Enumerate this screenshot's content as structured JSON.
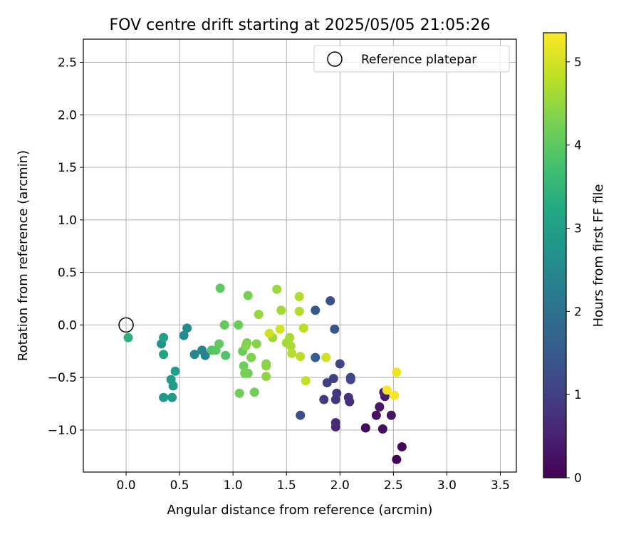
{
  "chart_data": {
    "type": "scatter",
    "title": "FOV centre drift starting at 2025/05/05 21:05:26",
    "xlabel": "Angular distance from reference (arcmin)",
    "ylabel": "Rotation from reference (arcmin)",
    "xlim": [
      -0.4,
      3.65
    ],
    "ylim": [
      -1.4,
      2.72
    ],
    "xticks": [
      "0.0",
      "0.5",
      "1.0",
      "1.5",
      "2.0",
      "2.5",
      "3.0",
      "3.5"
    ],
    "xtick_values": [
      0,
      0.5,
      1,
      1.5,
      2,
      2.5,
      3,
      3.5
    ],
    "yticks": [
      "−1.0",
      "−0.5",
      "0.0",
      "0.5",
      "1.0",
      "1.5",
      "2.0",
      "2.5"
    ],
    "ytick_values": [
      -1,
      -0.5,
      0,
      0.5,
      1,
      1.5,
      2,
      2.5
    ],
    "grid": true,
    "legend": {
      "position": "top-right",
      "entries": [
        {
          "label": "Reference platepar",
          "marker": "open-circle"
        }
      ]
    },
    "reference_point": {
      "x": 0.0,
      "y": 0.0
    },
    "colorbar": {
      "label": "Hours from first FF file",
      "colormap": "viridis",
      "range": [
        0,
        5.35
      ],
      "ticks": [
        "0",
        "1",
        "2",
        "3",
        "4",
        "5"
      ],
      "tick_values": [
        0,
        1,
        2,
        3,
        4,
        5
      ]
    },
    "points": [
      {
        "x": 2.53,
        "y": -1.28,
        "hours": 0.05
      },
      {
        "x": 2.58,
        "y": -1.16,
        "hours": 0.1
      },
      {
        "x": 2.24,
        "y": -0.98,
        "hours": 0.15
      },
      {
        "x": 2.4,
        "y": -0.99,
        "hours": 0.2
      },
      {
        "x": 2.34,
        "y": -0.86,
        "hours": 0.25
      },
      {
        "x": 2.48,
        "y": -0.86,
        "hours": 0.3
      },
      {
        "x": 2.37,
        "y": -0.78,
        "hours": 0.35
      },
      {
        "x": 2.42,
        "y": -0.68,
        "hours": 0.4
      },
      {
        "x": 2.41,
        "y": -0.64,
        "hours": 0.5
      },
      {
        "x": 1.96,
        "y": -0.97,
        "hours": 0.6
      },
      {
        "x": 1.96,
        "y": -0.93,
        "hours": 0.65
      },
      {
        "x": 2.09,
        "y": -0.73,
        "hours": 0.7
      },
      {
        "x": 2.08,
        "y": -0.69,
        "hours": 0.75
      },
      {
        "x": 1.96,
        "y": -0.71,
        "hours": 0.8
      },
      {
        "x": 1.97,
        "y": -0.65,
        "hours": 0.85
      },
      {
        "x": 1.85,
        "y": -0.71,
        "hours": 0.9
      },
      {
        "x": 1.88,
        "y": -0.55,
        "hours": 0.95
      },
      {
        "x": 1.94,
        "y": -0.51,
        "hours": 1.0
      },
      {
        "x": 2.0,
        "y": -0.37,
        "hours": 1.05
      },
      {
        "x": 2.1,
        "y": -0.5,
        "hours": 1.1
      },
      {
        "x": 2.1,
        "y": -0.52,
        "hours": 1.15
      },
      {
        "x": 1.63,
        "y": -0.86,
        "hours": 1.25
      },
      {
        "x": 1.91,
        "y": 0.23,
        "hours": 1.3
      },
      {
        "x": 1.95,
        "y": -0.04,
        "hours": 1.4
      },
      {
        "x": 1.77,
        "y": 0.14,
        "hours": 1.5
      },
      {
        "x": 1.77,
        "y": -0.31,
        "hours": 1.6
      },
      {
        "x": 0.74,
        "y": -0.29,
        "hours": 2.4
      },
      {
        "x": 0.71,
        "y": -0.24,
        "hours": 2.45
      },
      {
        "x": 0.64,
        "y": -0.28,
        "hours": 2.5
      },
      {
        "x": 0.57,
        "y": -0.03,
        "hours": 2.55
      },
      {
        "x": 0.54,
        "y": -0.1,
        "hours": 2.6
      },
      {
        "x": 0.33,
        "y": -0.18,
        "hours": 2.7
      },
      {
        "x": 0.35,
        "y": -0.69,
        "hours": 2.8
      },
      {
        "x": 0.43,
        "y": -0.69,
        "hours": 2.85
      },
      {
        "x": 0.42,
        "y": -0.52,
        "hours": 2.9
      },
      {
        "x": 0.44,
        "y": -0.58,
        "hours": 2.95
      },
      {
        "x": 0.46,
        "y": -0.44,
        "hours": 3.0
      },
      {
        "x": 0.35,
        "y": -0.12,
        "hours": 3.05
      },
      {
        "x": 0.35,
        "y": -0.28,
        "hours": 3.15
      },
      {
        "x": 0.02,
        "y": -0.12,
        "hours": 3.4
      },
      {
        "x": 0.93,
        "y": -0.29,
        "hours": 3.85
      },
      {
        "x": 0.8,
        "y": -0.24,
        "hours": 3.9
      },
      {
        "x": 0.84,
        "y": -0.24,
        "hours": 3.95
      },
      {
        "x": 0.88,
        "y": 0.35,
        "hours": 4.0
      },
      {
        "x": 0.87,
        "y": -0.18,
        "hours": 4.05
      },
      {
        "x": 0.92,
        "y": 0.0,
        "hours": 4.05
      },
      {
        "x": 1.05,
        "y": 0.0,
        "hours": 4.1
      },
      {
        "x": 1.09,
        "y": -0.25,
        "hours": 4.1
      },
      {
        "x": 1.1,
        "y": -0.39,
        "hours": 4.15
      },
      {
        "x": 1.14,
        "y": -0.46,
        "hours": 4.15
      },
      {
        "x": 1.06,
        "y": -0.65,
        "hours": 4.2
      },
      {
        "x": 1.2,
        "y": -0.64,
        "hours": 4.2
      },
      {
        "x": 1.14,
        "y": 0.28,
        "hours": 4.25
      },
      {
        "x": 1.11,
        "y": -0.46,
        "hours": 4.25
      },
      {
        "x": 1.13,
        "y": -0.17,
        "hours": 4.3
      },
      {
        "x": 1.17,
        "y": -0.31,
        "hours": 4.3
      },
      {
        "x": 1.22,
        "y": -0.18,
        "hours": 4.35
      },
      {
        "x": 1.12,
        "y": -0.2,
        "hours": 4.35
      },
      {
        "x": 1.31,
        "y": -0.37,
        "hours": 4.4
      },
      {
        "x": 1.31,
        "y": -0.39,
        "hours": 4.4
      },
      {
        "x": 1.31,
        "y": -0.49,
        "hours": 4.45
      },
      {
        "x": 1.24,
        "y": 0.1,
        "hours": 4.5
      },
      {
        "x": 1.37,
        "y": -0.12,
        "hours": 4.55
      },
      {
        "x": 1.41,
        "y": 0.34,
        "hours": 4.55
      },
      {
        "x": 1.45,
        "y": 0.14,
        "hours": 4.6
      },
      {
        "x": 1.5,
        "y": -0.17,
        "hours": 4.6
      },
      {
        "x": 1.53,
        "y": -0.12,
        "hours": 4.65
      },
      {
        "x": 1.54,
        "y": -0.2,
        "hours": 4.65
      },
      {
        "x": 1.62,
        "y": 0.27,
        "hours": 4.7
      },
      {
        "x": 1.62,
        "y": 0.13,
        "hours": 4.7
      },
      {
        "x": 1.55,
        "y": -0.27,
        "hours": 4.75
      },
      {
        "x": 1.63,
        "y": -0.3,
        "hours": 4.8
      },
      {
        "x": 1.66,
        "y": -0.03,
        "hours": 4.8
      },
      {
        "x": 1.68,
        "y": -0.53,
        "hours": 4.85
      },
      {
        "x": 1.87,
        "y": -0.31,
        "hours": 4.95
      },
      {
        "x": 1.34,
        "y": -0.08,
        "hours": 4.95
      },
      {
        "x": 1.44,
        "y": -0.04,
        "hours": 5.0
      },
      {
        "x": 2.53,
        "y": -0.45,
        "hours": 5.2
      },
      {
        "x": 2.44,
        "y": -0.62,
        "hours": 5.3
      },
      {
        "x": 2.51,
        "y": -0.67,
        "hours": 5.3
      }
    ]
  }
}
